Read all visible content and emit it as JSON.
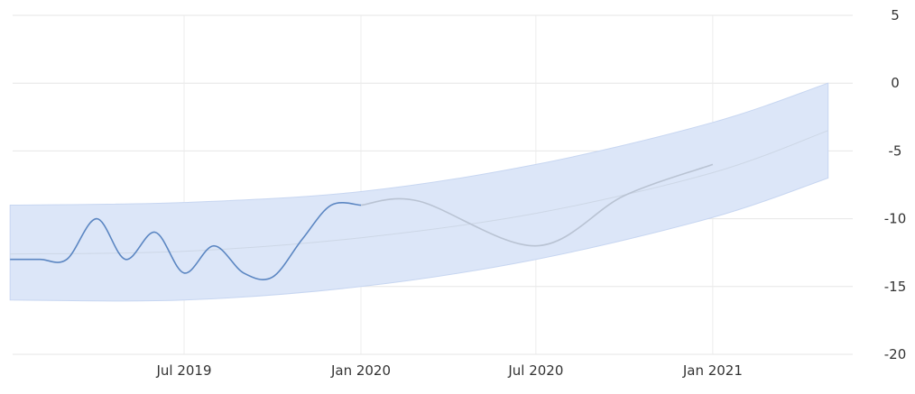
{
  "chart_data": {
    "type": "line",
    "title": "",
    "xlabel": "",
    "ylabel": "",
    "x_ticks": [
      "Jul 2019",
      "Jan 2020",
      "Jul 2020",
      "Jan 2021"
    ],
    "y_ticks": [
      5,
      0,
      -5,
      -10,
      -15,
      -20
    ],
    "ylim": [
      -20,
      5
    ],
    "xlim": [
      "2019-01-01",
      "2021-05-01"
    ],
    "grid": true,
    "legend": "none",
    "series": [
      {
        "role": "actual",
        "color": "#5b86c2",
        "x": [
          "2019-01-01",
          "2019-02-01",
          "2019-03-01",
          "2019-04-01",
          "2019-05-01",
          "2019-06-01",
          "2019-07-01",
          "2019-08-01",
          "2019-09-01",
          "2019-10-01",
          "2019-11-01",
          "2019-12-01",
          "2020-01-01"
        ],
        "y": [
          -13,
          -13,
          -13,
          -10,
          -13,
          -11,
          -14,
          -12,
          -14,
          -14.3,
          -11.5,
          -9,
          -9
        ]
      },
      {
        "role": "forecast",
        "color": "#b9c3d3",
        "x": [
          "2020-01-01",
          "2020-03-01",
          "2020-07-01",
          "2020-10-01",
          "2021-01-01"
        ],
        "y": [
          -9,
          -8.7,
          -12,
          -8.3,
          -6
        ]
      },
      {
        "role": "trend",
        "color": "#cdd7e6",
        "x": [
          "2019-01-01",
          "2019-07-01",
          "2020-01-01",
          "2020-07-01",
          "2021-01-01",
          "2021-05-01"
        ],
        "y": [
          -12.6,
          -12.4,
          -11.4,
          -9.6,
          -6.6,
          -3.5
        ]
      }
    ],
    "band": {
      "color": "#dce6f8",
      "x": [
        "2019-01-01",
        "2019-07-01",
        "2020-01-01",
        "2020-07-01",
        "2021-01-01",
        "2021-05-01"
      ],
      "upper": [
        -9,
        -8.8,
        -8.0,
        -6.0,
        -2.9,
        0
      ],
      "lower": [
        -16,
        -16,
        -15,
        -13,
        -9.9,
        -7
      ]
    }
  }
}
